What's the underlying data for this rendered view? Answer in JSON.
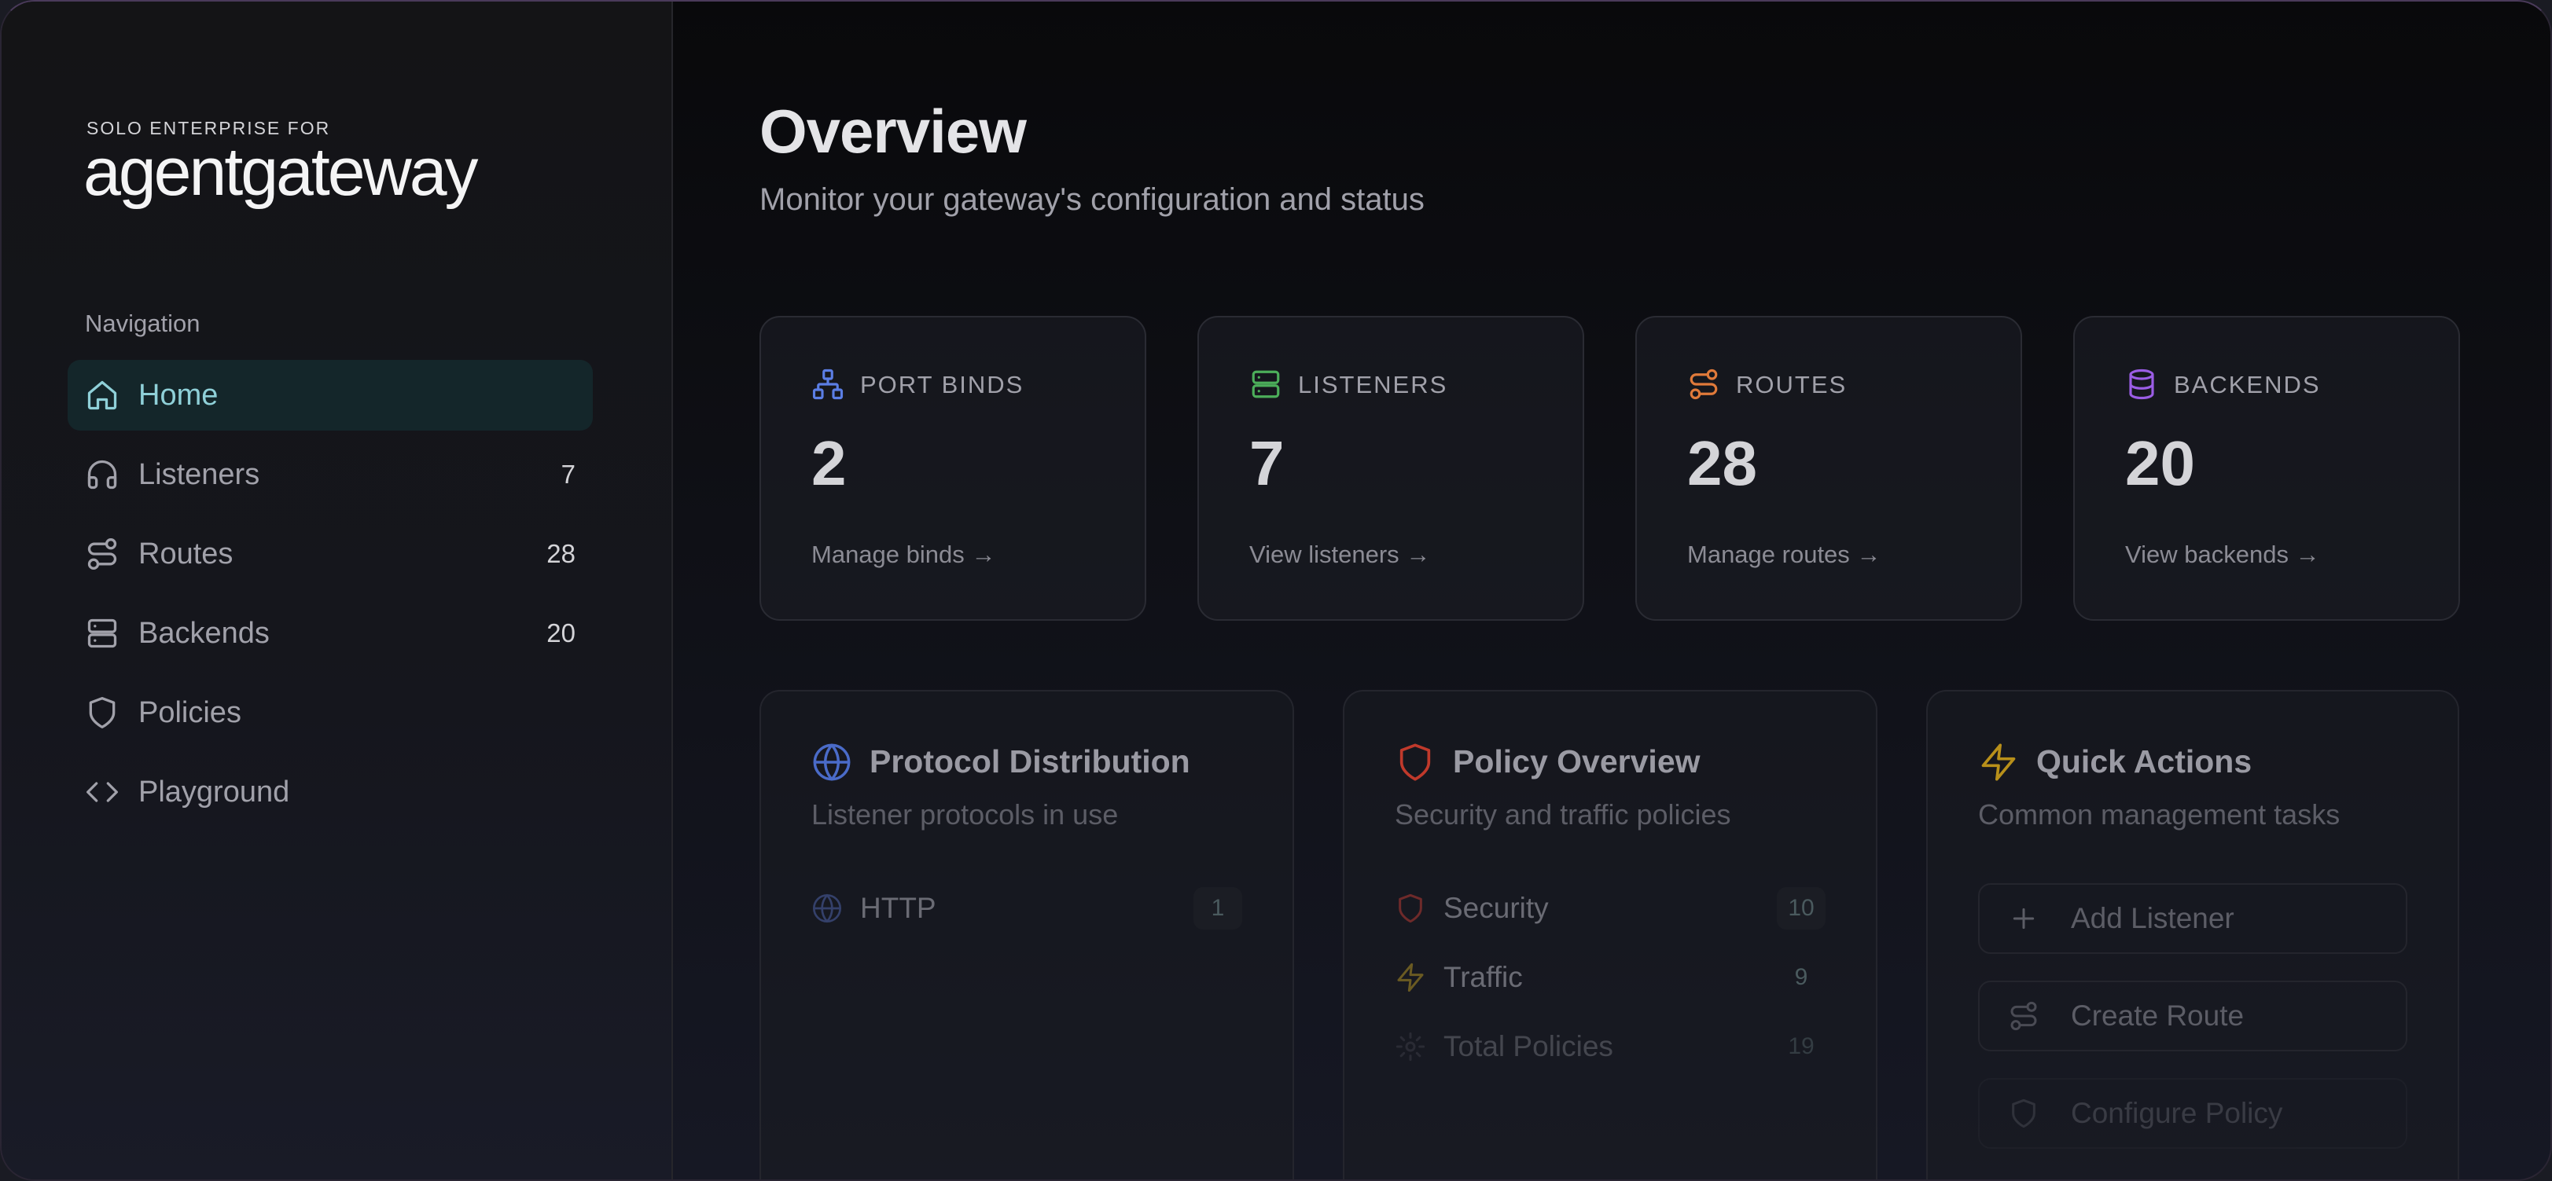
{
  "brand": {
    "tagline": "SOLO ENTERPRISE FOR",
    "name": "agentgateway"
  },
  "sidebar": {
    "heading": "Navigation",
    "items": [
      {
        "label": "Home",
        "count": "",
        "icon": "home-icon",
        "active": true
      },
      {
        "label": "Listeners",
        "count": "7",
        "icon": "headphones-icon"
      },
      {
        "label": "Routes",
        "count": "28",
        "icon": "route-icon"
      },
      {
        "label": "Backends",
        "count": "20",
        "icon": "server-icon"
      },
      {
        "label": "Policies",
        "count": "",
        "icon": "shield-icon"
      },
      {
        "label": "Playground",
        "count": "",
        "icon": "code-icon"
      }
    ]
  },
  "header": {
    "title": "Overview",
    "subtitle": "Monitor your gateway's configuration and status"
  },
  "stats": [
    {
      "label": "PORT BINDS",
      "value": "2",
      "link": "Manage binds →",
      "icon": "network-icon",
      "color": "#5b7ee5"
    },
    {
      "label": "LISTENERS",
      "value": "7",
      "link": "View listeners →",
      "icon": "server-icon",
      "color": "#4cae5a"
    },
    {
      "label": "ROUTES",
      "value": "28",
      "link": "Manage routes →",
      "icon": "route-icon",
      "color": "#e07a3a"
    },
    {
      "label": "BACKENDS",
      "value": "20",
      "link": "View backends →",
      "icon": "database-icon",
      "color": "#9b5de5"
    }
  ],
  "protocol": {
    "title": "Protocol Distribution",
    "subtitle": "Listener protocols in use",
    "icon": "globe-icon",
    "rows": [
      {
        "label": "HTTP",
        "count": "1"
      }
    ]
  },
  "policy": {
    "title": "Policy Overview",
    "subtitle": "Security and traffic policies",
    "icon": "shield-icon",
    "rows": [
      {
        "label": "Security",
        "count": "10",
        "icon": "shield-icon"
      },
      {
        "label": "Traffic",
        "count": "9",
        "icon": "zap-icon"
      },
      {
        "label": "Total Policies",
        "count": "19",
        "icon": "gear-icon"
      }
    ]
  },
  "quick_actions": {
    "title": "Quick Actions",
    "subtitle": "Common management tasks",
    "icon": "zap-icon",
    "items": [
      {
        "label": "Add Listener",
        "icon": "plus-icon"
      },
      {
        "label": "Create Route",
        "icon": "route-icon"
      },
      {
        "label": "Configure Policy",
        "icon": "shield-icon"
      }
    ]
  },
  "colors": {
    "accent": "#8fd0d8",
    "active_bg": "#14262a",
    "policy_red": "#c0392b",
    "quick_yellow": "#b8901a",
    "protocol_blue": "#4a6bc8"
  }
}
